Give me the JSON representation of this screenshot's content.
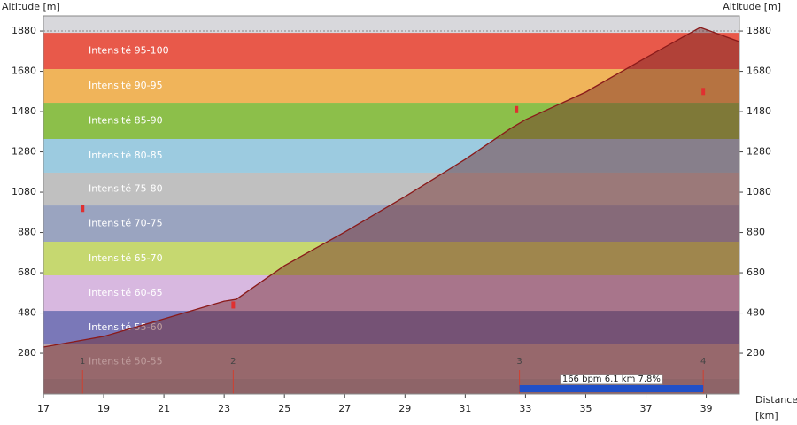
{
  "chart_data": {
    "type": "area",
    "y_label": "Altitude  [m]",
    "x_label": [
      "Distance",
      "[km]"
    ],
    "x": [
      17,
      19,
      21,
      23,
      23.4,
      25,
      27,
      29,
      31,
      32.5,
      33,
      35,
      37,
      38.8,
      40.1
    ],
    "values": [
      311,
      364,
      451,
      539,
      548,
      715,
      882,
      1058,
      1243,
      1396,
      1440,
      1577,
      1748,
      1898,
      1827
    ],
    "color": "#8a1a1a",
    "xlim": [
      17,
      40.1
    ],
    "xticks": [
      17,
      19,
      21,
      23,
      25,
      27,
      29,
      31,
      33,
      35,
      37,
      39
    ],
    "ylim": [
      78,
      1955
    ],
    "yticks": [
      280,
      480,
      680,
      880,
      1080,
      1280,
      1480,
      1680,
      1880
    ],
    "bands": [
      {
        "label": "Intensité 95-100",
        "color": "#e8594a",
        "from": 1691,
        "to": 1871
      },
      {
        "label": "Intensité 90-95",
        "color": "#f0b45a",
        "from": 1524,
        "to": 1691
      },
      {
        "label": "Intensité 85-90",
        "color": "#8cbf4a",
        "from": 1344,
        "to": 1524
      },
      {
        "label": "Intensité 80-85",
        "color": "#9ccbe0",
        "from": 1177,
        "to": 1344
      },
      {
        "label": "Intensité 75-80",
        "color": "#c0c0c0",
        "from": 1014,
        "to": 1177
      },
      {
        "label": "Intensité 70-75",
        "color": "#9aa4c0",
        "from": 834,
        "to": 1014
      },
      {
        "label": "Intensité 65-70",
        "color": "#c6d870",
        "from": 667,
        "to": 834
      },
      {
        "label": "Intensité 60-65",
        "color": "#d8b8e0",
        "from": 491,
        "to": 667
      },
      {
        "label": "Intensité 55-60",
        "color": "#7a78b8",
        "from": 324,
        "to": 491
      },
      {
        "label": "Intensité 50-55",
        "color": "#b8a0a8",
        "from": 153,
        "to": 324
      }
    ],
    "laps": [
      {
        "label": "1",
        "x": 18.3
      },
      {
        "label": "2",
        "x": 23.3
      },
      {
        "label": "3",
        "x": 32.8
      },
      {
        "label": "4",
        "x": 38.9
      }
    ],
    "markers": [
      {
        "x": 18.3,
        "y": 1000
      },
      {
        "x": 23.3,
        "y": 520
      },
      {
        "x": 32.7,
        "y": 1490
      },
      {
        "x": 38.9,
        "y": 1580
      }
    ],
    "climb": {
      "label": "166 bpm 6.1 km 7.8%",
      "start": 32.8,
      "end": 38.9
    }
  }
}
